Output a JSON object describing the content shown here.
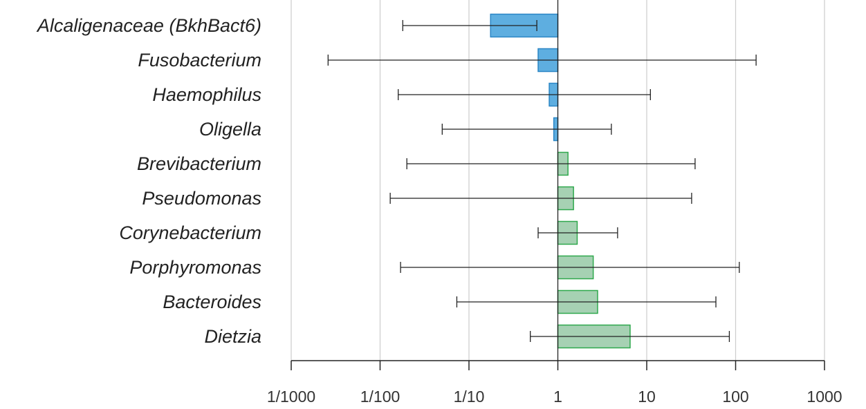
{
  "chart_data": {
    "type": "bar",
    "orientation": "horizontal",
    "x_scale": "log10",
    "baseline": 1,
    "xlim": [
      0.001,
      1000
    ],
    "grid": true,
    "legend": "none",
    "title": "",
    "xlabel": "",
    "ylabel": "",
    "x_ticks": [
      0.001,
      0.01,
      0.1,
      1,
      10,
      100,
      1000
    ],
    "x_tick_labels": [
      "1/1000",
      "1/100",
      "1/10",
      "1",
      "10",
      "100",
      "1000"
    ],
    "categories": [
      "Alcaligenaceae (BkhBact6)",
      "Fusobacterium",
      "Haemophilus",
      "Oligella",
      "Brevibacterium",
      "Pseudomonas",
      "Corynebacterium",
      "Porphyromonas",
      "Bacteroides",
      "Dietzia"
    ],
    "values": [
      0.175,
      0.6,
      0.8,
      0.9,
      1.3,
      1.5,
      1.65,
      2.5,
      2.8,
      6.5
    ],
    "error_low": [
      0.018,
      0.0026,
      0.016,
      0.05,
      0.02,
      0.013,
      0.6,
      0.017,
      0.073,
      0.49
    ],
    "error_high": [
      0.58,
      170,
      11,
      4,
      35,
      32,
      4.7,
      110,
      60,
      85
    ],
    "colors": {
      "decrease_fill": "#5eaee0",
      "decrease_stroke": "#2b86c5",
      "increase_fill": "#a6d1b3",
      "increase_stroke": "#2ea84c",
      "error_bar": "#222222",
      "grid": "#cccccc",
      "axis": "#222222"
    }
  }
}
